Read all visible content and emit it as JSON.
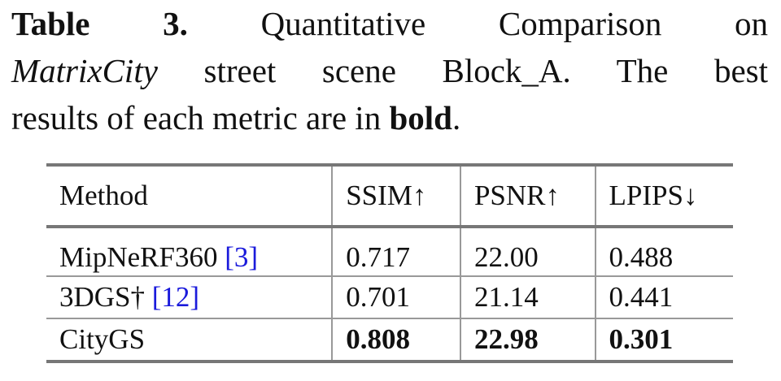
{
  "caption": {
    "label": "Table 3.",
    "parts": [
      "Quantitative Comparison on",
      "MatrixCity",
      "street scene Block_A. The best",
      "results of each metric are in",
      "bold",
      "."
    ]
  },
  "table": {
    "header": [
      "Method",
      "SSIM↑",
      "PSNR↑",
      "LPIPS↓"
    ],
    "rows": [
      {
        "method": "MipNeRF360",
        "cite": "[3]",
        "values": [
          "0.717",
          "22.00",
          "0.488"
        ]
      },
      {
        "method": "3DGS†",
        "cite": "[12]",
        "values": [
          "0.701",
          "21.14",
          "0.441"
        ]
      },
      {
        "method": "CityGS",
        "cite": null,
        "values": [
          "0.808",
          "22.98",
          "0.301"
        ],
        "bold": true
      }
    ]
  }
}
